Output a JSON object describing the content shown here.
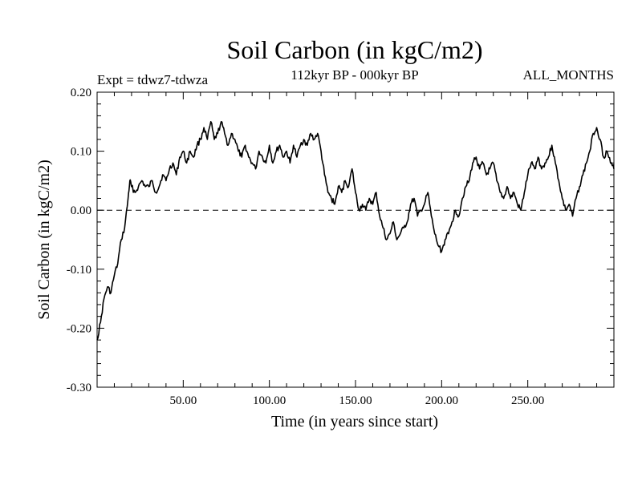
{
  "chart_data": {
    "type": "line",
    "title": "Soil Carbon (in kgC/m2)",
    "subtitle": "112kyr BP - 000kyr BP",
    "left_note": "Expt = tdwz7-tdwza",
    "right_note": "ALL_MONTHS",
    "xlabel": "Time (in years since start)",
    "ylabel": "Soil Carbon (in kgC/m2)",
    "xlim": [
      0,
      300
    ],
    "ylim": [
      -0.3,
      0.2
    ],
    "x_ticks": [
      50,
      100,
      150,
      200,
      250
    ],
    "x_tick_labels": [
      "50.00",
      "100.00",
      "150.00",
      "200.00",
      "250.00"
    ],
    "y_ticks": [
      -0.3,
      -0.2,
      -0.1,
      0.0,
      0.1,
      0.2
    ],
    "y_tick_labels": [
      "-0.30",
      "-0.20",
      "-0.10",
      "0.00",
      "0.10",
      "0.20"
    ],
    "reference_line": {
      "y": 0.0,
      "style": "dashed"
    },
    "grid": false,
    "series": [
      {
        "x": [
          0,
          2,
          4,
          6,
          8,
          10,
          12,
          14,
          16,
          18,
          19,
          20,
          22,
          24,
          26,
          28,
          30,
          32,
          34,
          36,
          38,
          40,
          42,
          44,
          46,
          48,
          50,
          52,
          54,
          56,
          58,
          60,
          62,
          64,
          66,
          68,
          70,
          72,
          74,
          76,
          78,
          80,
          82,
          84,
          86,
          88,
          90,
          92,
          94,
          96,
          98,
          100,
          102,
          104,
          106,
          108,
          110,
          112,
          114,
          116,
          118,
          120,
          122,
          124,
          126,
          128,
          130,
          132,
          134,
          136,
          138,
          140,
          142,
          144,
          146,
          148,
          150,
          152,
          154,
          156,
          158,
          160,
          162,
          164,
          166,
          168,
          170,
          172,
          174,
          176,
          178,
          180,
          182,
          184,
          186,
          188,
          190,
          192,
          194,
          196,
          198,
          200,
          202,
          204,
          206,
          208,
          210,
          212,
          214,
          216,
          218,
          220,
          222,
          224,
          226,
          228,
          230,
          232,
          234,
          236,
          238,
          240,
          242,
          244,
          246,
          248,
          250,
          252,
          254,
          256,
          258,
          260,
          262,
          264,
          266,
          268,
          270,
          272,
          274,
          276,
          278,
          280,
          282,
          284,
          286,
          288,
          290,
          292,
          294,
          296,
          298,
          300
        ],
        "y": [
          -0.22,
          -0.19,
          -0.15,
          -0.13,
          -0.14,
          -0.11,
          -0.09,
          -0.05,
          -0.03,
          0.02,
          0.05,
          0.04,
          0.03,
          0.04,
          0.05,
          0.04,
          0.04,
          0.05,
          0.03,
          0.04,
          0.06,
          0.05,
          0.07,
          0.08,
          0.06,
          0.09,
          0.1,
          0.08,
          0.1,
          0.09,
          0.11,
          0.12,
          0.14,
          0.12,
          0.15,
          0.12,
          0.13,
          0.15,
          0.13,
          0.11,
          0.13,
          0.12,
          0.1,
          0.09,
          0.11,
          0.09,
          0.08,
          0.07,
          0.1,
          0.09,
          0.08,
          0.11,
          0.08,
          0.1,
          0.11,
          0.09,
          0.1,
          0.08,
          0.11,
          0.09,
          0.11,
          0.12,
          0.11,
          0.13,
          0.12,
          0.13,
          0.1,
          0.06,
          0.03,
          0.02,
          0.01,
          0.04,
          0.03,
          0.05,
          0.04,
          0.07,
          0.03,
          0.0,
          0.01,
          0.0,
          0.02,
          0.01,
          0.03,
          -0.01,
          -0.03,
          -0.05,
          -0.04,
          -0.02,
          -0.05,
          -0.04,
          -0.03,
          -0.02,
          0.01,
          0.02,
          -0.01,
          0.0,
          0.01,
          0.03,
          -0.01,
          -0.04,
          -0.06,
          -0.07,
          -0.05,
          -0.04,
          -0.02,
          0.0,
          -0.01,
          0.02,
          0.04,
          0.05,
          0.08,
          0.09,
          0.07,
          0.08,
          0.06,
          0.07,
          0.08,
          0.05,
          0.03,
          0.02,
          0.04,
          0.02,
          0.03,
          0.01,
          0.0,
          0.03,
          0.06,
          0.08,
          0.07,
          0.09,
          0.07,
          0.08,
          0.09,
          0.11,
          0.08,
          0.05,
          0.02,
          0.0,
          0.01,
          -0.01,
          0.02,
          0.04,
          0.06,
          0.08,
          0.1,
          0.13,
          0.14,
          0.12,
          0.09,
          0.1,
          0.08,
          0.07
        ]
      }
    ]
  }
}
